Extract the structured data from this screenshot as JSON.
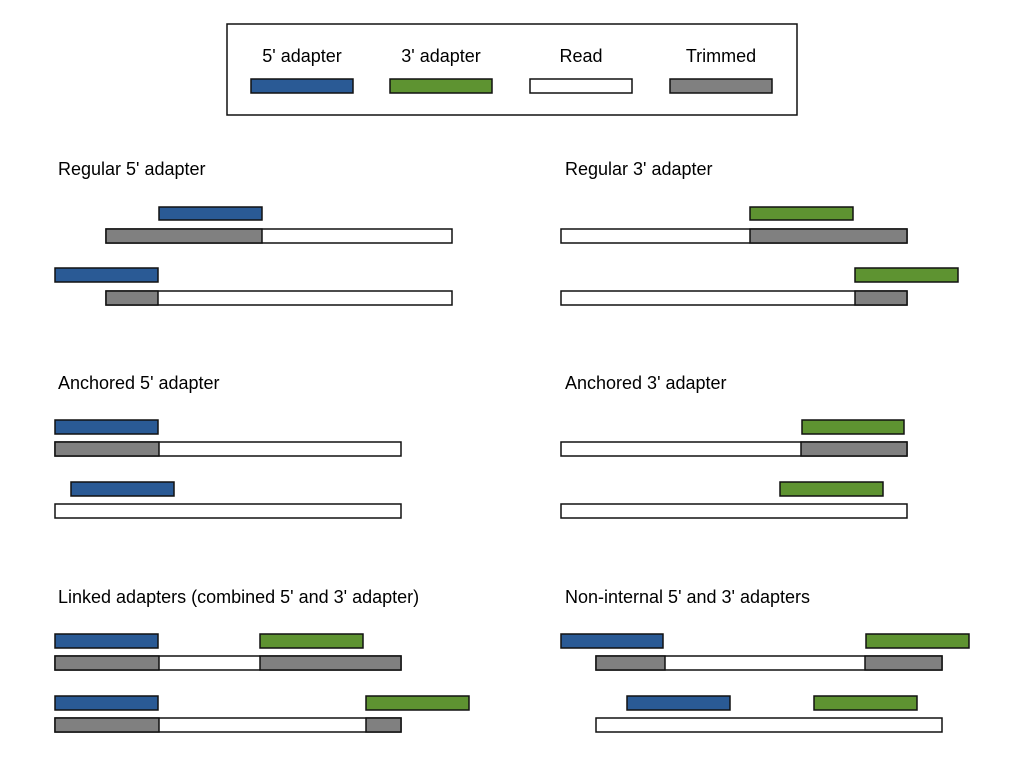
{
  "colors": {
    "adapter5": "#2a5a95",
    "adapter3": "#5e9331",
    "read": "#ffffff",
    "trimmed": "#808080",
    "stroke": "#111111"
  },
  "legend": {
    "items": [
      {
        "key": "adapter5",
        "label": "5' adapter"
      },
      {
        "key": "adapter3",
        "label": "3' adapter"
      },
      {
        "key": "read",
        "label": "Read"
      },
      {
        "key": "trimmed",
        "label": "Trimmed"
      }
    ]
  },
  "panels": [
    {
      "title": "Regular 5' adapter"
    },
    {
      "title": "Regular 3' adapter"
    },
    {
      "title": "Anchored 5' adapter"
    },
    {
      "title": "Anchored 3' adapter"
    },
    {
      "title": "Linked adapters (combined 5' and 3' adapter)"
    },
    {
      "title": "Non-internal 5' and 3' adapters"
    }
  ]
}
